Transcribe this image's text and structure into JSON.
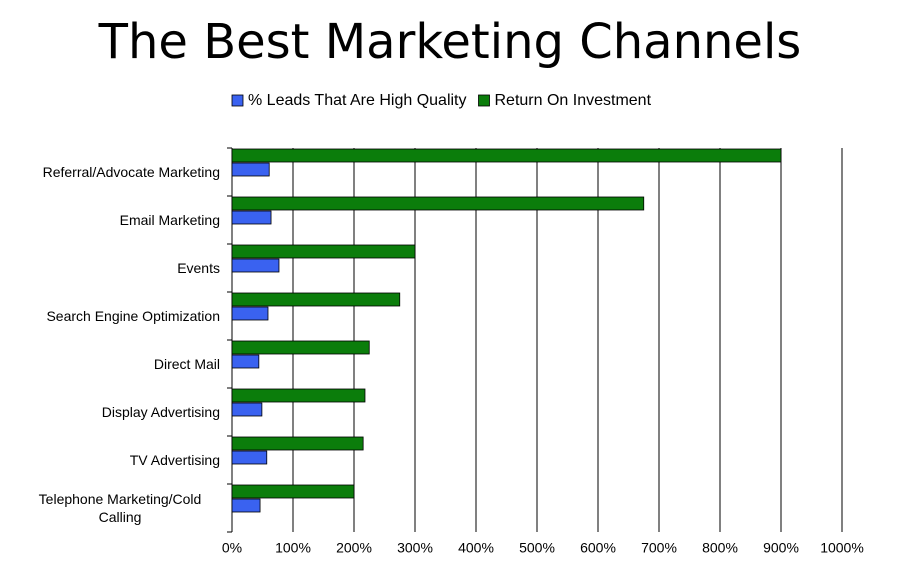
{
  "chart_data": {
    "type": "bar",
    "orientation": "horizontal",
    "title": "The Best Marketing Channels",
    "categories": [
      "Referral/Advocate Marketing",
      "Email Marketing",
      "Events",
      "Search Engine Optimization",
      "Direct Mail",
      "Display Advertising",
      "TV Advertising",
      "Telephone Marketing/Cold Calling"
    ],
    "series": [
      {
        "name": "Return On Investment",
        "color": "#0b7d0b",
        "values": [
          900,
          675,
          300,
          275,
          225,
          218,
          215,
          200
        ]
      },
      {
        "name": "% Leads That Are High Quality",
        "color": "#3a62f0",
        "values": [
          61,
          64,
          77,
          59,
          44,
          49,
          57,
          46
        ]
      }
    ],
    "legend_order": [
      1,
      0
    ],
    "xlim": [
      0,
      1000
    ],
    "xticks": [
      {
        "value": 0,
        "label": "0%"
      },
      {
        "value": 100,
        "label": "100%"
      },
      {
        "value": 200,
        "label": "200%"
      },
      {
        "value": 300,
        "label": "300%"
      },
      {
        "value": 400,
        "label": "400%"
      },
      {
        "value": 500,
        "label": "500%"
      },
      {
        "value": 600,
        "label": "600%"
      },
      {
        "value": 700,
        "label": "700%"
      },
      {
        "value": 800,
        "label": "800%"
      },
      {
        "value": 900,
        "label": "900%"
      },
      {
        "value": 1000,
        "label": "1000%"
      }
    ],
    "grid": true
  }
}
